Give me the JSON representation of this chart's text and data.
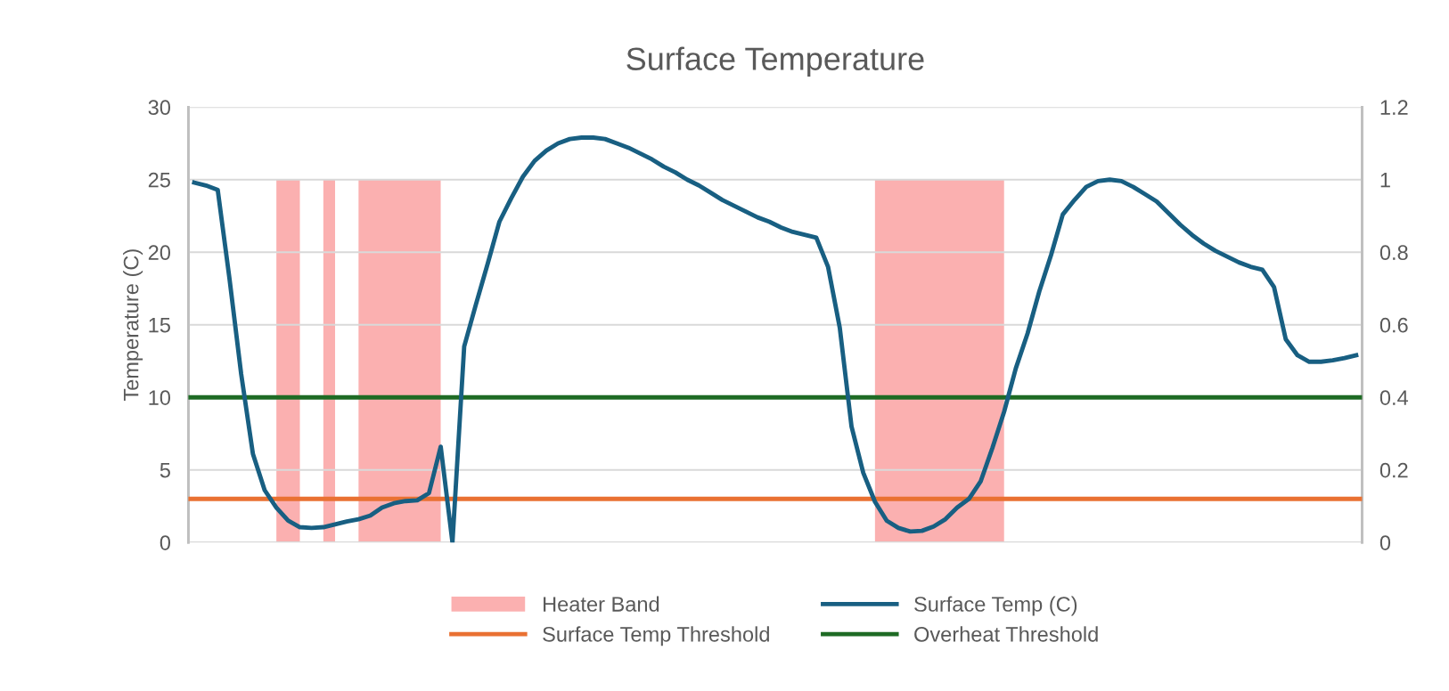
{
  "chart_data": {
    "type": "line",
    "title": "Surface Temperature",
    "ylabel": "Temperature (C)",
    "categories": [
      null,
      null,
      null,
      null,
      null,
      null,
      null,
      null,
      null,
      null,
      null,
      null,
      null,
      null,
      null,
      null,
      null,
      null,
      null,
      null,
      null,
      null,
      null,
      null,
      null,
      null,
      null,
      null,
      null,
      null,
      null,
      null,
      null,
      null,
      null,
      null,
      null,
      null,
      null,
      null,
      null,
      null,
      null,
      null,
      null,
      null,
      null,
      null,
      null,
      null,
      null,
      null,
      null,
      null,
      null,
      null,
      null,
      null,
      null,
      null,
      null,
      null,
      null,
      null,
      null,
      null,
      null,
      null,
      null,
      null,
      null,
      null,
      null,
      null,
      null,
      null,
      null,
      null,
      null,
      null,
      null,
      null,
      null,
      null,
      null,
      null,
      null,
      null,
      null,
      null,
      null,
      null,
      null,
      null,
      null,
      null,
      null,
      null,
      null,
      null
    ],
    "series": [
      {
        "name": "Heater Band",
        "type": "area",
        "axis": "y2",
        "color": "#fbb0b0",
        "values": [
          null,
          null,
          null,
          null,
          null,
          null,
          null,
          1,
          1,
          1,
          null,
          1,
          1,
          null,
          1,
          1,
          1,
          1,
          1,
          1,
          1,
          1,
          null,
          null,
          null,
          null,
          null,
          null,
          null,
          null,
          null,
          null,
          null,
          null,
          null,
          null,
          null,
          null,
          null,
          null,
          null,
          null,
          null,
          null,
          null,
          null,
          null,
          null,
          null,
          null,
          null,
          null,
          null,
          null,
          null,
          null,
          null,
          null,
          1,
          1,
          1,
          1,
          1,
          1,
          1,
          1,
          1,
          1,
          1,
          1,
          null,
          null,
          null,
          null,
          null,
          null,
          null,
          null,
          null,
          null,
          null,
          null,
          null,
          null,
          null,
          null,
          null,
          null,
          null,
          null,
          null,
          null,
          null,
          null,
          null,
          null,
          null,
          null,
          null,
          null
        ]
      },
      {
        "name": "Surface Temp (C)",
        "color": "#185f82",
        "values": [
          24.8,
          24.6,
          24.3,
          18.2,
          11.6,
          6.1,
          3.6,
          2.4,
          1.5,
          1.05,
          1.0,
          1.05,
          1.25,
          1.45,
          1.6,
          1.85,
          2.4,
          2.7,
          2.85,
          2.9,
          3.4,
          6.6,
          0,
          13.5,
          16.4,
          19.2,
          22.1,
          23.7,
          25.2,
          26.3,
          27.0,
          27.5,
          27.8,
          27.9,
          27.9,
          27.8,
          27.5,
          27.2,
          26.8,
          26.4,
          25.9,
          25.5,
          25.0,
          24.6,
          24.1,
          23.6,
          23.2,
          22.8,
          22.4,
          22.1,
          21.7,
          21.4,
          21.2,
          21.0,
          19.0,
          14.8,
          8.0,
          4.8,
          2.8,
          1.5,
          1.0,
          0.75,
          0.8,
          1.1,
          1.6,
          2.4,
          3.0,
          4.2,
          6.5,
          9.0,
          12.0,
          14.4,
          17.3,
          19.8,
          22.6,
          23.6,
          24.5,
          24.9,
          25.0,
          24.9,
          24.5,
          24.0,
          23.5,
          22.7,
          21.9,
          21.2,
          20.6,
          20.1,
          19.7,
          19.3,
          19.0,
          18.8,
          17.6,
          14.0,
          12.9,
          12.45,
          12.45,
          12.55,
          12.7,
          12.9
        ]
      }
    ],
    "ref_lines": [
      {
        "axis": "y",
        "value": 3,
        "label": "Surface Temp Threshold",
        "color": "#e97132"
      },
      {
        "axis": "y",
        "value": 10,
        "label": "Overheat Threshold",
        "color": "#1e6b24"
      }
    ],
    "ylim": [
      0,
      30
    ],
    "yticks": [
      0,
      5,
      10,
      15,
      20,
      25,
      30
    ],
    "y2lim": [
      0,
      1.2
    ],
    "y2ticks": [
      0,
      0.2,
      0.4,
      0.6,
      0.8,
      1,
      1.2
    ],
    "grid": "y",
    "legend": "bottom"
  }
}
